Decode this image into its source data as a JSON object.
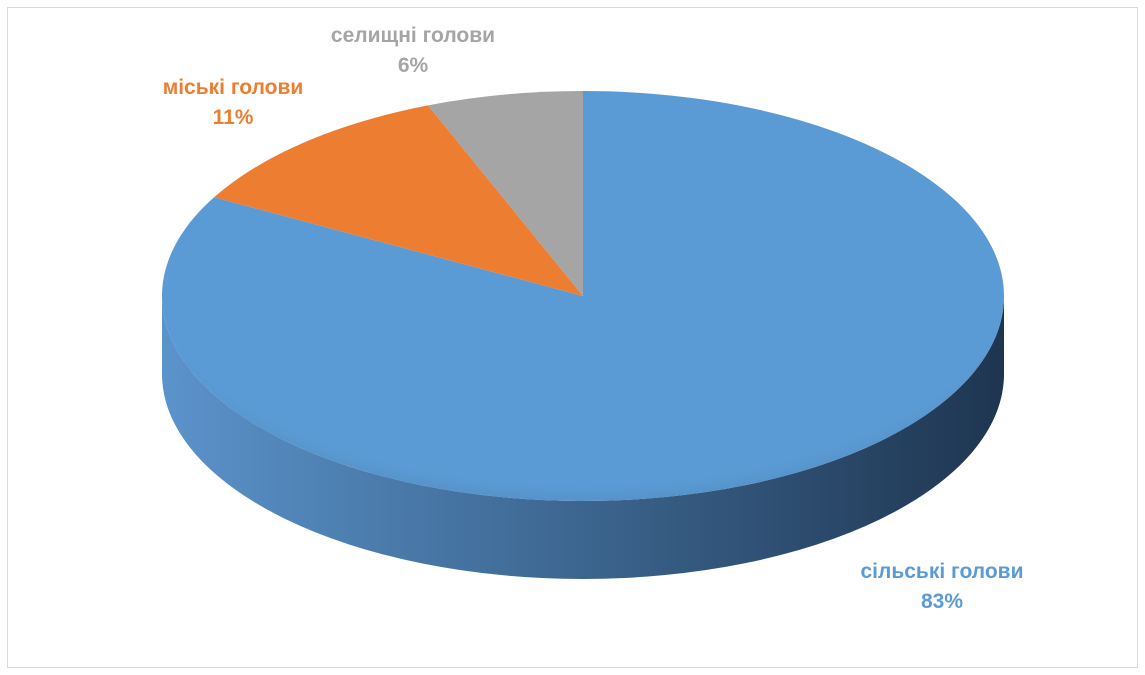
{
  "chart_data": {
    "type": "pie",
    "style": "3d",
    "title": "",
    "slices": [
      {
        "label": "сільські голови",
        "value": 83,
        "value_label": "83%",
        "color": "#5B9BD5"
      },
      {
        "label": "міські голови",
        "value": 11,
        "value_label": "11%",
        "color": "#ED7D31"
      },
      {
        "label": "селищні голови",
        "value": 6,
        "value_label": "6%",
        "color": "#A5A5A5"
      }
    ],
    "legend": "none",
    "data_labels": "outside"
  }
}
